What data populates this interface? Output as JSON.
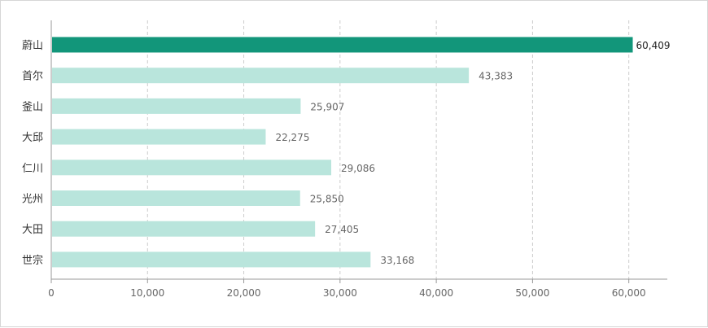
{
  "chart_data": {
    "type": "bar",
    "orientation": "horizontal",
    "title": "",
    "xlabel": "",
    "ylabel": "",
    "categories": [
      "蔚山",
      "首尔",
      "釜山",
      "大邱",
      "仁川",
      "光州",
      "大田",
      "世宗"
    ],
    "values": [
      60409,
      43383,
      25907,
      22275,
      29086,
      25850,
      27405,
      33168
    ],
    "value_labels": [
      "60,409",
      "43,383",
      "25,907",
      "22,275",
      "29,086",
      "25,850",
      "27,405",
      "33,168"
    ],
    "highlight_index": 0,
    "xlim": [
      0,
      64000
    ],
    "x_ticks": [
      0,
      10000,
      20000,
      30000,
      40000,
      50000,
      60000
    ],
    "x_tick_labels": [
      "0",
      "10,000",
      "20,000",
      "30,000",
      "40,000",
      "50,000",
      "60,000"
    ],
    "grid": "vertical dashed",
    "legend": "none",
    "colors": {
      "highlight": "#12967a",
      "bar": "#b9e5dc",
      "grid": "#cccccc",
      "axis": "#999999"
    }
  }
}
